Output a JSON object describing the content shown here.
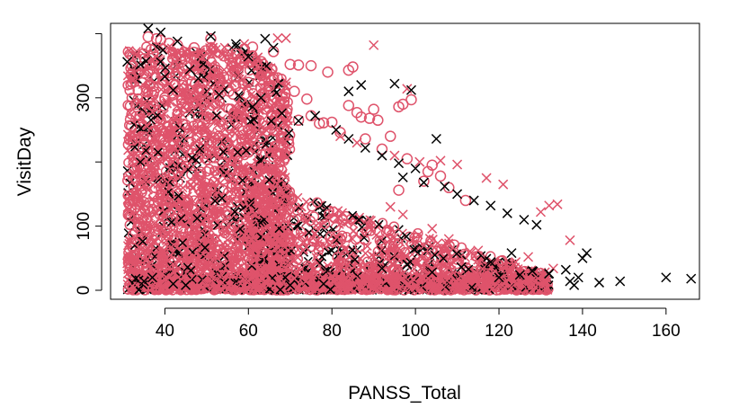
{
  "chart_data": {
    "type": "scatter",
    "title": "",
    "xlabel": "PANSS_Total",
    "ylabel": "VisitDay",
    "xlim": [
      27,
      168
    ],
    "ylim": [
      -14,
      416
    ],
    "xticks": [
      40,
      60,
      80,
      100,
      120,
      140,
      160
    ],
    "yticks": [
      0,
      100,
      300
    ],
    "grid": false,
    "legend": "none",
    "colors": {
      "pink": "#df536b",
      "black": "#000000"
    },
    "series": [
      {
        "marker": "o",
        "color": "#df536b",
        "points": [
          [
            36,
            395
          ],
          [
            38,
            392
          ],
          [
            39,
            390
          ],
          [
            41,
            385
          ],
          [
            43,
            382
          ],
          [
            47,
            378
          ],
          [
            51,
            392
          ],
          [
            55,
            373
          ],
          [
            59,
            376
          ],
          [
            61,
            379
          ],
          [
            66,
            372
          ],
          [
            58,
            355
          ],
          [
            62,
            352
          ],
          [
            70,
            352
          ],
          [
            72,
            351
          ],
          [
            75,
            350
          ],
          [
            79,
            340
          ],
          [
            84,
            343
          ],
          [
            85,
            348
          ],
          [
            99,
            297
          ],
          [
            96,
            286
          ],
          [
            97,
            290
          ],
          [
            84,
            288
          ],
          [
            90,
            282
          ],
          [
            86,
            277
          ],
          [
            87,
            270
          ],
          [
            89,
            268
          ],
          [
            91,
            265
          ],
          [
            78,
            261
          ],
          [
            80,
            262
          ],
          [
            72,
            265
          ],
          [
            75,
            272
          ],
          [
            94,
            240
          ],
          [
            103,
            185
          ],
          [
            106,
            178
          ],
          [
            102,
            170
          ],
          [
            96,
            156
          ],
          [
            40,
            300
          ],
          [
            42,
            322
          ],
          [
            46,
            336
          ],
          [
            48,
            310
          ],
          [
            53,
            330
          ],
          [
            57,
            318
          ],
          [
            64,
            300
          ],
          [
            67,
            286
          ],
          [
            69,
            270
          ],
          [
            33,
            290
          ],
          [
            34,
            272
          ],
          [
            32,
            256
          ],
          [
            35,
            230
          ],
          [
            44,
            356
          ],
          [
            52,
            344
          ],
          [
            56,
            350
          ],
          [
            60,
            324
          ],
          [
            65,
            318
          ],
          [
            71,
            310
          ],
          [
            74,
            298
          ],
          [
            77,
            260
          ],
          [
            82,
            246
          ],
          [
            88,
            236
          ],
          [
            92,
            220
          ],
          [
            98,
            205
          ],
          [
            104,
            195
          ],
          [
            108,
            160
          ],
          [
            112,
            140
          ]
        ]
      },
      {
        "marker": "x",
        "color": "#df536b",
        "points": [
          [
            67,
            393
          ],
          [
            69,
            393
          ],
          [
            90,
            382
          ],
          [
            98,
            314
          ],
          [
            59,
            384
          ],
          [
            45,
            372
          ],
          [
            49,
            363
          ],
          [
            56,
            366
          ],
          [
            60,
            362
          ],
          [
            82,
            240
          ],
          [
            86,
            230
          ],
          [
            95,
            210
          ],
          [
            101,
            200
          ],
          [
            106,
            202
          ],
          [
            110,
            196
          ],
          [
            117,
            175
          ],
          [
            121,
            165
          ],
          [
            132,
            132
          ],
          [
            134,
            134
          ],
          [
            130,
            122
          ],
          [
            137,
            78
          ],
          [
            127,
            52
          ],
          [
            133,
            34
          ],
          [
            131,
            28
          ],
          [
            124,
            44
          ],
          [
            115,
            62
          ],
          [
            108,
            80
          ],
          [
            104,
            96
          ],
          [
            97,
            118
          ],
          [
            94,
            130
          ],
          [
            31,
            42
          ],
          [
            33,
            28
          ],
          [
            46,
            6
          ],
          [
            50,
            10
          ],
          [
            57,
            3
          ],
          [
            62,
            4
          ],
          [
            70,
            5
          ],
          [
            76,
            8
          ],
          [
            84,
            6
          ],
          [
            90,
            4
          ],
          [
            100,
            6
          ],
          [
            112,
            5
          ],
          [
            120,
            8
          ],
          [
            126,
            16
          ],
          [
            130,
            22
          ]
        ]
      },
      {
        "marker": "x",
        "color": "#000000",
        "points": [
          [
            36,
            408
          ],
          [
            39,
            402
          ],
          [
            43,
            388
          ],
          [
            51,
            396
          ],
          [
            57,
            384
          ],
          [
            60,
            364
          ],
          [
            64,
            392
          ],
          [
            66,
            378
          ],
          [
            31,
            356
          ],
          [
            40,
            333
          ],
          [
            42,
            312
          ],
          [
            46,
            344
          ],
          [
            48,
            330
          ],
          [
            53,
            305
          ],
          [
            61,
            286
          ],
          [
            63,
            300
          ],
          [
            68,
            276
          ],
          [
            72,
            264
          ],
          [
            76,
            272
          ],
          [
            81,
            250
          ],
          [
            84,
            236
          ],
          [
            88,
            222
          ],
          [
            92,
            210
          ],
          [
            96,
            198
          ],
          [
            84,
            310
          ],
          [
            87,
            320
          ],
          [
            95,
            322
          ],
          [
            99,
            312
          ],
          [
            105,
            236
          ],
          [
            100,
            190
          ],
          [
            97,
            176
          ],
          [
            102,
            168
          ],
          [
            107,
            162
          ],
          [
            110,
            150
          ],
          [
            114,
            140
          ],
          [
            118,
            132
          ],
          [
            122,
            120
          ],
          [
            126,
            110
          ],
          [
            129,
            102
          ],
          [
            33,
            18
          ],
          [
            35,
            14
          ],
          [
            42,
            10
          ],
          [
            45,
            8
          ],
          [
            37,
            20
          ],
          [
            70,
            8
          ],
          [
            78,
            10
          ],
          [
            120,
            20
          ],
          [
            125,
            24
          ],
          [
            128,
            30
          ],
          [
            132,
            26
          ],
          [
            136,
            32
          ],
          [
            137,
            14
          ],
          [
            138,
            8
          ],
          [
            139,
            20
          ],
          [
            140,
            50
          ],
          [
            141,
            58
          ],
          [
            144,
            12
          ],
          [
            149,
            14
          ],
          [
            160,
            20
          ],
          [
            166,
            18
          ],
          [
            123,
            58
          ],
          [
            118,
            44
          ],
          [
            111,
            36
          ],
          [
            104,
            28
          ],
          [
            98,
            40
          ],
          [
            92,
            34
          ]
        ]
      }
    ],
    "dense_region_note_removed": true
  }
}
